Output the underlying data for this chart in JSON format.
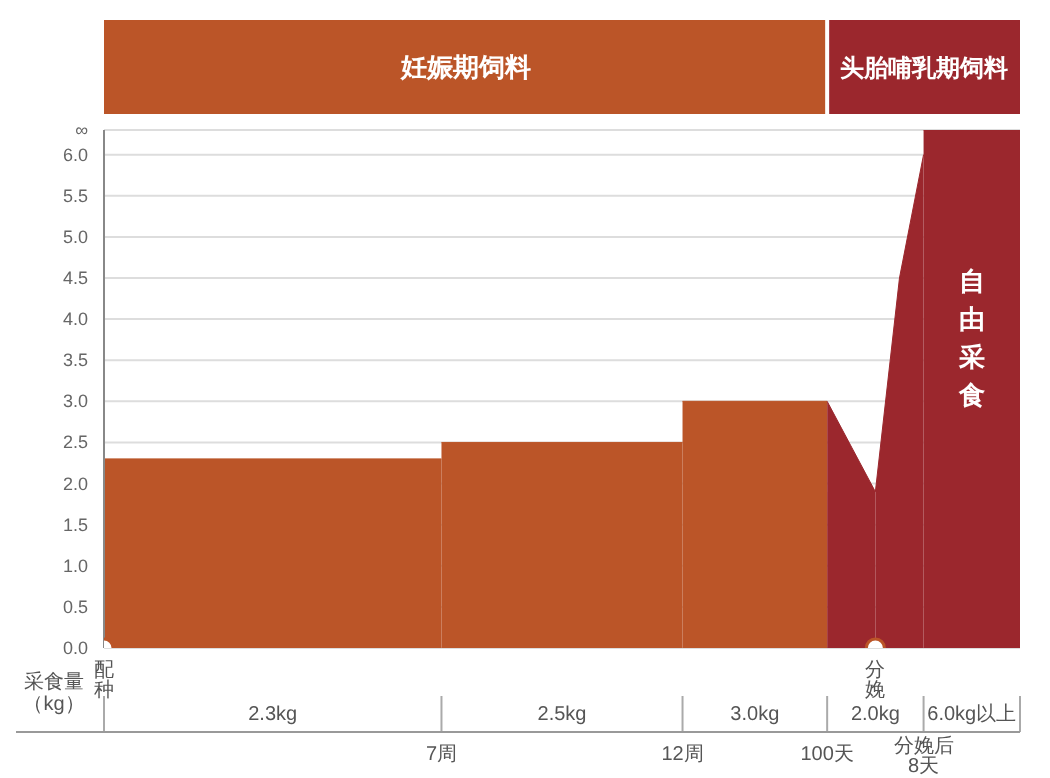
{
  "chart_data": {
    "type": "area",
    "ylabel": "采食量（kg）",
    "categories": [
      "配种",
      null,
      null,
      null,
      null,
      null,
      null,
      null,
      null,
      null,
      null,
      null,
      null,
      null,
      "7周",
      null,
      null,
      null,
      null,
      null,
      null,
      null,
      null,
      null,
      "12周",
      null,
      null,
      null,
      null,
      null,
      "100天",
      null,
      "分娩",
      null,
      "分娩后8天",
      null,
      null,
      null,
      null
    ],
    "ylim": [
      0,
      6.3
    ],
    "yticks": [
      {
        "value": 0,
        "label": "0.0"
      },
      {
        "value": 0.5,
        "label": "0.5"
      },
      {
        "value": 1,
        "label": "1.0"
      },
      {
        "value": 1.5,
        "label": "1.5"
      },
      {
        "value": 2,
        "label": "2.0"
      },
      {
        "value": 2.5,
        "label": "2.5"
      },
      {
        "value": 3,
        "label": "3.0"
      },
      {
        "value": 3.5,
        "label": "3.5"
      },
      {
        "value": 4,
        "label": "4.0"
      },
      {
        "value": 4.5,
        "label": "4.5"
      },
      {
        "value": 5,
        "label": "5.0"
      },
      {
        "value": 5.5,
        "label": "5.5"
      },
      {
        "value": 6,
        "label": "6.0"
      },
      {
        "value": 6.3,
        "label": "∞"
      }
    ],
    "grid": "y",
    "series": [
      {
        "color": "#bb5528",
        "values": [
          2.3,
          null,
          null,
          null,
          null,
          null,
          null,
          null,
          null,
          null,
          null,
          null,
          null,
          null,
          2.3,
          null,
          null,
          null,
          null,
          null,
          null,
          null,
          null,
          null,
          null,
          null,
          null,
          null,
          null,
          null,
          null,
          null,
          null,
          null,
          null,
          null,
          null,
          null,
          null
        ]
      },
      {
        "color": "#bb5528",
        "values": [
          null,
          null,
          null,
          null,
          null,
          null,
          null,
          null,
          null,
          null,
          null,
          null,
          null,
          null,
          2.5,
          null,
          null,
          null,
          null,
          null,
          null,
          null,
          null,
          null,
          2.5,
          null,
          null,
          null,
          null,
          null,
          null,
          null,
          null,
          null,
          null,
          null,
          null,
          null,
          null
        ]
      },
      {
        "color": "#bb5528",
        "values": [
          null,
          null,
          null,
          null,
          null,
          null,
          null,
          null,
          null,
          null,
          null,
          null,
          null,
          null,
          null,
          null,
          null,
          null,
          null,
          null,
          null,
          null,
          null,
          null,
          3.0,
          null,
          null,
          null,
          null,
          null,
          3.0,
          null,
          null,
          null,
          null,
          null,
          null,
          null,
          null
        ]
      },
      {
        "color": "#9b272d",
        "values": [
          null,
          null,
          null,
          null,
          null,
          null,
          null,
          null,
          null,
          null,
          null,
          null,
          null,
          null,
          null,
          null,
          null,
          null,
          null,
          null,
          null,
          null,
          null,
          null,
          null,
          null,
          null,
          null,
          null,
          null,
          3.0,
          null,
          1.9,
          null,
          null,
          null,
          null,
          null,
          null
        ]
      },
      {
        "color": "#9b272d",
        "values": [
          null,
          null,
          null,
          null,
          null,
          null,
          null,
          null,
          null,
          null,
          null,
          null,
          null,
          null,
          null,
          null,
          null,
          null,
          null,
          null,
          null,
          null,
          null,
          null,
          null,
          null,
          null,
          null,
          null,
          null,
          null,
          null,
          1.9,
          4.5,
          6.0,
          null,
          null,
          null,
          null
        ]
      },
      {
        "name": "自由采食",
        "color": "#9b272d",
        "values": [
          null,
          null,
          null,
          null,
          null,
          null,
          null,
          null,
          null,
          null,
          null,
          null,
          null,
          null,
          null,
          null,
          null,
          null,
          null,
          null,
          null,
          null,
          null,
          null,
          null,
          null,
          null,
          null,
          null,
          null,
          null,
          null,
          null,
          null,
          6.3,
          null,
          null,
          null,
          6.3
        ]
      },
      {
        "type": "scatter",
        "color": "#bb5528",
        "marker": "circle",
        "values": [
          0,
          null,
          null,
          null,
          null,
          null,
          null,
          null,
          null,
          null,
          null,
          null,
          null,
          null,
          null,
          null,
          null,
          null,
          null,
          null,
          null,
          null,
          null,
          null,
          null,
          null,
          null,
          null,
          null,
          null,
          null,
          null,
          0,
          null,
          null,
          null,
          null,
          null,
          null
        ]
      }
    ],
    "annotations": [
      "妊娠期饲料",
      "头胎哺乳期饲料",
      "2.3kg",
      "2.5kg",
      "3.0kg",
      "2.0kg",
      "6.0kg以上"
    ]
  }
}
